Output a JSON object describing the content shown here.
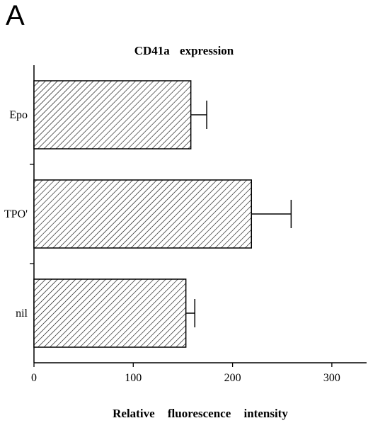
{
  "panel": {
    "letter": "A"
  },
  "chart_data": {
    "type": "bar",
    "orientation": "horizontal",
    "title": "CD41a expression",
    "xlabel": "Relative fluorescence intensity",
    "ylabel": "",
    "categories": [
      "Epo",
      "TPO'",
      "nil"
    ],
    "values": [
      158,
      219,
      153
    ],
    "errors": [
      16,
      40,
      9
    ],
    "xlim": [
      0,
      335
    ],
    "xticks": [
      0,
      100,
      200,
      300
    ],
    "bar_pattern": "diagonal-hatch",
    "grid": false,
    "legend": "none"
  }
}
